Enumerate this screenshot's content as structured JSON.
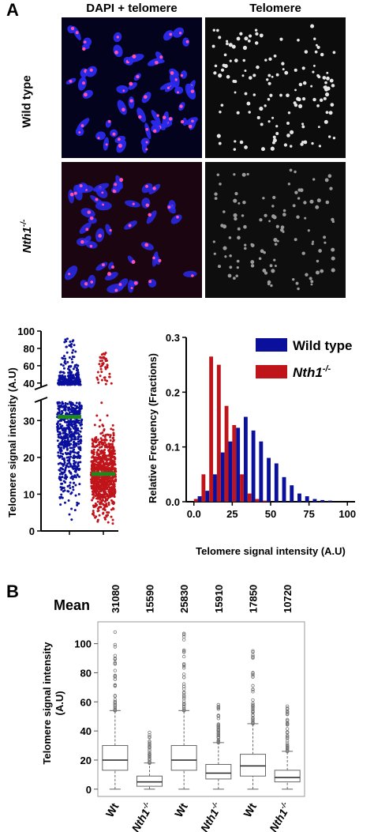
{
  "panel_a_label": "A",
  "panel_b_label": "B",
  "micrographs": {
    "col_headers": [
      "DAPI + telomere",
      "Telomere"
    ],
    "rows": [
      {
        "label": "Wild type",
        "superscript": ""
      },
      {
        "label": "Nth1",
        "superscript": "-/-"
      }
    ]
  },
  "colors": {
    "wild_type": "#0a0f9c",
    "nth1": "#c0141b",
    "median_bar": "#1e8a1e",
    "dapi_blue": "#2a2aee",
    "telomere_red": "#ff4fb0"
  },
  "chart_data": [
    {
      "type": "scatter",
      "ylabel": "Telomere signal intensity (A.U)",
      "y_axis_broken": true,
      "lower_ticks": [
        0,
        10,
        20,
        30
      ],
      "upper_ticks": [
        40,
        60,
        80,
        100
      ],
      "lower_range": [
        0,
        35
      ],
      "upper_range": [
        38,
        100
      ],
      "series": [
        {
          "group": "wild_type",
          "y_min": 2,
          "y_max": 92,
          "median": 31
        },
        {
          "group": "nth1",
          "y_min": 2,
          "y_max": 75,
          "median": 15.5
        }
      ]
    },
    {
      "type": "bar",
      "xlabel": "Telomere signal intensity (A.U)",
      "ylabel": "Relative Frequency (Fractions)",
      "xlim": [
        -5,
        105
      ],
      "ylim": [
        0,
        0.3
      ],
      "xticks": [
        0.0,
        25,
        50,
        75,
        100
      ],
      "yticks": [
        0.0,
        0.1,
        0.2,
        0.3
      ],
      "ytick_labels": [
        "0.0",
        "0.1",
        "0.2",
        "0.3"
      ],
      "xtick_labels": [
        "0.0",
        "25",
        "50",
        "75",
        "100"
      ],
      "legend_position": "top-right",
      "bin_width": 5,
      "x": [
        0,
        5,
        10,
        15,
        20,
        25,
        30,
        35,
        40,
        45,
        50,
        55,
        60,
        65,
        70,
        75,
        80,
        85
      ],
      "series": [
        {
          "name": "Wild type",
          "values": [
            0.01,
            0.02,
            0.05,
            0.09,
            0.11,
            0.135,
            0.155,
            0.13,
            0.11,
            0.08,
            0.07,
            0.045,
            0.03,
            0.015,
            0.01,
            0.005,
            0.003,
            0.002
          ]
        },
        {
          "name": "Nth1",
          "name_sup": "-/-",
          "values": [
            0.005,
            0.05,
            0.265,
            0.25,
            0.175,
            0.14,
            0.05,
            0.015,
            0.005,
            0.002,
            0,
            0,
            0,
            0,
            0,
            0,
            0,
            0
          ]
        }
      ]
    },
    {
      "type": "box",
      "ylabel": "Telomere signal intensity (A.U)",
      "ylim": [
        -5,
        115
      ],
      "yticks": [
        0,
        20,
        40,
        60,
        80,
        100
      ],
      "mean_label": "Mean",
      "groups": [
        {
          "label": "Wt",
          "sup": "",
          "mean": "31080",
          "q1": 13,
          "median": 20,
          "q3": 30,
          "whisker_low": 0,
          "whisker_high": 54,
          "outlier_max": 108
        },
        {
          "label": "Nth1",
          "sup": "-/-",
          "mean": "15590",
          "q1": 2,
          "median": 5,
          "q3": 9,
          "whisker_low": 0,
          "whisker_high": 18,
          "outlier_max": 39
        },
        {
          "label": "Wt",
          "sup": "",
          "mean": "25830",
          "q1": 13,
          "median": 20,
          "q3": 30,
          "whisker_low": 0,
          "whisker_high": 54,
          "outlier_max": 107
        },
        {
          "label": "Nth1",
          "sup": "-/-",
          "mean": "15910",
          "q1": 7,
          "median": 11,
          "q3": 17,
          "whisker_low": 0,
          "whisker_high": 32,
          "outlier_max": 58
        },
        {
          "label": "Wt",
          "sup": "",
          "mean": "17850",
          "q1": 9,
          "median": 16,
          "q3": 24,
          "whisker_low": 0,
          "whisker_high": 45,
          "outlier_max": 95
        },
        {
          "label": "Nth1",
          "sup": "-/-",
          "mean": "10720",
          "q1": 5,
          "median": 8,
          "q3": 13,
          "whisker_low": 0,
          "whisker_high": 26,
          "outlier_max": 57
        }
      ]
    }
  ]
}
